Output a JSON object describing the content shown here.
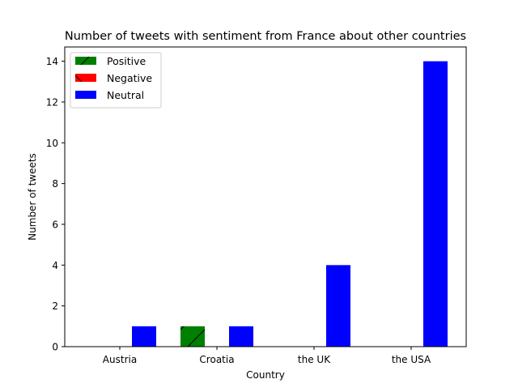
{
  "chart_data": {
    "type": "bar",
    "title": "Number of tweets with sentiment from France about other countries",
    "xlabel": "Country",
    "ylabel": "Number of tweets",
    "categories": [
      "Austria",
      "Croatia",
      "the UK",
      "the USA"
    ],
    "ylim": [
      0,
      14.7
    ],
    "yticks": [
      0,
      2,
      4,
      6,
      8,
      10,
      12,
      14
    ],
    "legend_position": "top-left",
    "grid": false,
    "series": [
      {
        "name": "Positive",
        "values": [
          0,
          1,
          0,
          0
        ],
        "color": "#008000",
        "hatch": "/"
      },
      {
        "name": "Negative",
        "values": [
          0,
          0,
          0,
          0
        ],
        "color": "#ff0000",
        "hatch": "\\"
      },
      {
        "name": "Neutral",
        "values": [
          1,
          1,
          4,
          14
        ],
        "color": "#0000ff",
        "hatch": ""
      }
    ]
  }
}
